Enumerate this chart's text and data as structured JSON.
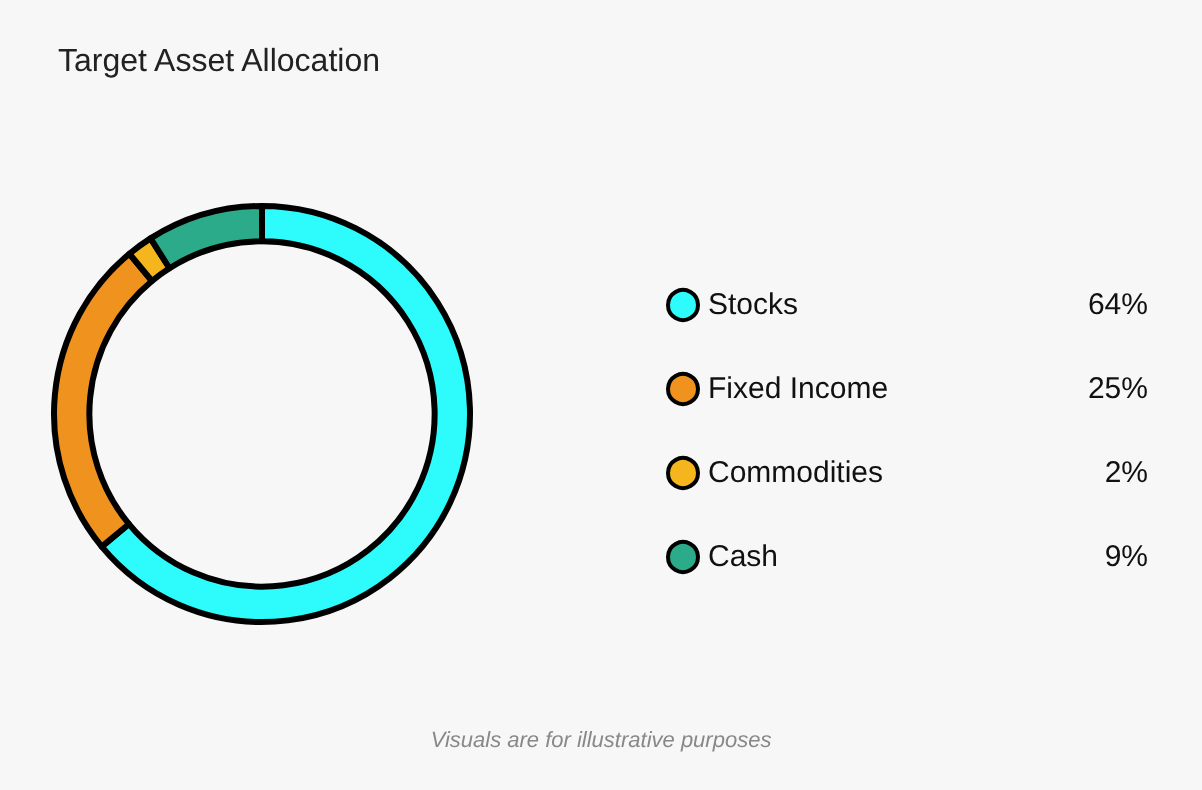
{
  "chart_data": {
    "type": "donut",
    "title": "Target Asset Allocation",
    "categories": [
      "Stocks",
      "Fixed Income",
      "Commodities",
      "Cash"
    ],
    "values": [
      64,
      25,
      2,
      9
    ],
    "value_labels": [
      "64%",
      "25%",
      "2%",
      "9%"
    ],
    "colors": [
      "#2efcfc",
      "#f0921e",
      "#f5b51c",
      "#2bab8a"
    ],
    "legend": "right",
    "annotations": [
      "Visuals are for illustrative purposes"
    ]
  }
}
